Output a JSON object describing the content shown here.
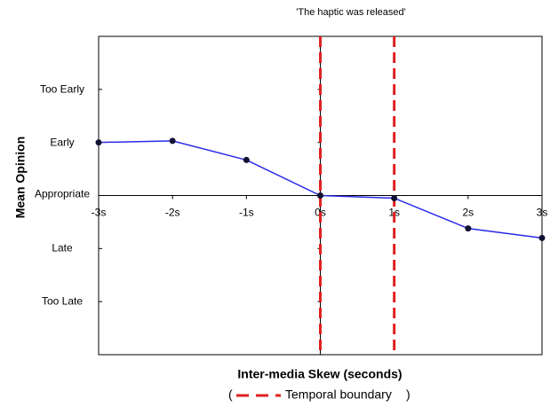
{
  "chart_data": {
    "type": "line",
    "annotation": "'The haptic was released'",
    "x_label": "Inter-media Skew (seconds)",
    "y_label": "Mean Opinion",
    "x": [
      -3,
      -2,
      -1,
      0,
      1,
      2,
      3
    ],
    "series": [
      {
        "color": "#2a2ae6",
        "values": [
          1.0,
          1.03,
          0.67,
          0,
          -0.05,
          -0.62,
          -0.8
        ]
      }
    ],
    "xlim": [
      -3,
      3
    ],
    "xticks": [
      {
        "value": -3,
        "label": "-3s"
      },
      {
        "value": -2,
        "label": "-2s"
      },
      {
        "value": -1,
        "label": "-1s"
      },
      {
        "value": 0,
        "label": "0s"
      },
      {
        "value": 1,
        "label": "1s"
      },
      {
        "value": 2,
        "label": "2s"
      },
      {
        "value": 3,
        "label": "3s"
      }
    ],
    "ylim": [
      -3,
      3
    ],
    "yticks": [
      {
        "value": 2,
        "label": "Too Early"
      },
      {
        "value": 1,
        "label": "Early"
      },
      {
        "value": 0,
        "label": "Appropriate"
      },
      {
        "value": -1,
        "label": "Late"
      },
      {
        "value": -2,
        "label": "Too Late"
      }
    ],
    "boundaries": [
      0,
      1
    ],
    "boundary_color": "#e02020",
    "legend": {
      "prefix": "(",
      "label": "Temporal boundary",
      "suffix": ")"
    }
  }
}
